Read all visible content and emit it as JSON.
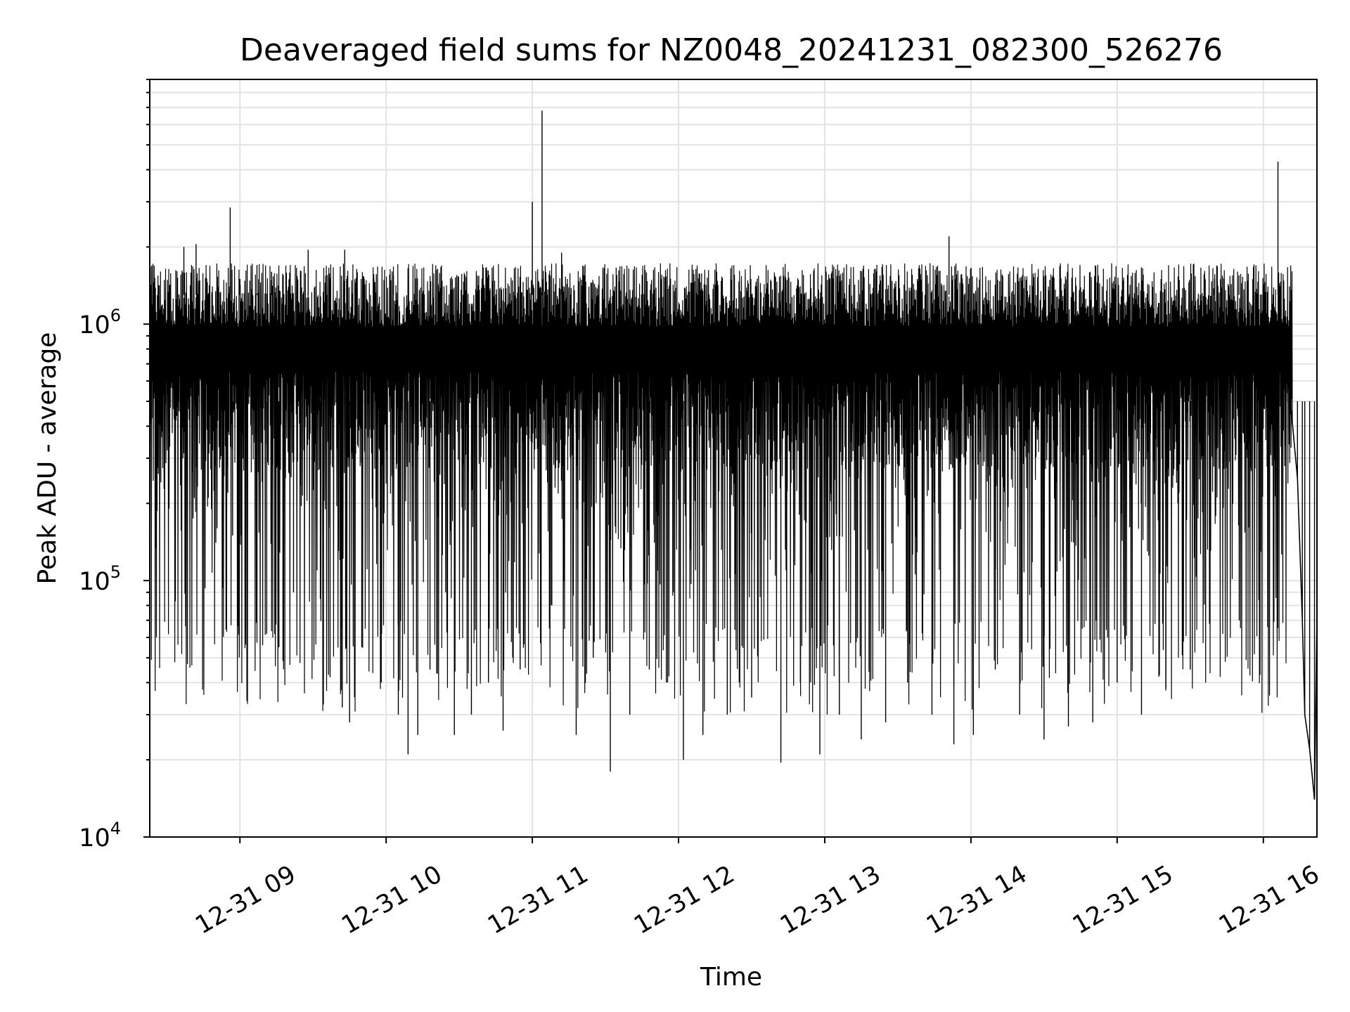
{
  "chart_data": {
    "type": "line",
    "title": "Deaveraged field sums for NZ0048_20241231_082300_526276",
    "xlabel": "Time",
    "ylabel": "Peak ADU - average",
    "yscale": "log",
    "ylim": [
      10000,
      9000000
    ],
    "xlim": [
      "2024-12-31 08:23",
      "2024-12-31 16:22"
    ],
    "xticks": [
      {
        "value": "2024-12-31 09:00",
        "label": "12-31 09"
      },
      {
        "value": "2024-12-31 10:00",
        "label": "12-31 10"
      },
      {
        "value": "2024-12-31 11:00",
        "label": "12-31 11"
      },
      {
        "value": "2024-12-31 12:00",
        "label": "12-31 12"
      },
      {
        "value": "2024-12-31 13:00",
        "label": "12-31 13"
      },
      {
        "value": "2024-12-31 14:00",
        "label": "12-31 14"
      },
      {
        "value": "2024-12-31 15:00",
        "label": "12-31 15"
      },
      {
        "value": "2024-12-31 16:00",
        "label": "12-31 16"
      }
    ],
    "yticks": [
      {
        "value": 10000,
        "base": "10",
        "exp": "4"
      },
      {
        "value": 100000,
        "base": "10",
        "exp": "5"
      },
      {
        "value": 1000000,
        "base": "10",
        "exp": "6"
      }
    ],
    "grid": true,
    "line_color": "#000000",
    "series": [
      {
        "points": [
          [
            "2024-12-31 08:23",
            450000
          ],
          [
            "2024-12-31 08:27",
            600000
          ],
          [
            "2024-12-31 08:31",
            1100000
          ],
          [
            "2024-12-31 08:33",
            500000
          ],
          [
            "2024-12-31 08:35",
            1300000
          ],
          [
            "2024-12-31 08:37",
            2000000
          ],
          [
            "2024-12-31 08:39",
            700000
          ],
          [
            "2024-12-31 08:42",
            2050000
          ],
          [
            "2024-12-31 08:45",
            350000
          ],
          [
            "2024-12-31 08:47",
            210000
          ],
          [
            "2024-12-31 08:51",
            1400000
          ],
          [
            "2024-12-31 08:55",
            220000
          ],
          [
            "2024-12-31 08:57",
            150000
          ],
          [
            "2024-12-31 09:00",
            1500000
          ],
          [
            "2024-12-31 08:56",
            2850000
          ],
          [
            "2024-12-31 09:03",
            105000
          ],
          [
            "2024-12-31 09:07",
            1700000
          ],
          [
            "2024-12-31 09:11",
            62000
          ],
          [
            "2024-12-31 09:13",
            1600000
          ],
          [
            "2024-12-31 09:16",
            55000
          ],
          [
            "2024-12-31 09:19",
            1550000
          ],
          [
            "2024-12-31 09:22",
            90000
          ],
          [
            "2024-12-31 09:28",
            1950000
          ],
          [
            "2024-12-31 09:33",
            85000
          ],
          [
            "2024-12-31 09:37",
            42000
          ],
          [
            "2024-12-31 09:42",
            32000
          ],
          [
            "2024-12-31 09:43",
            1950000
          ],
          [
            "2024-12-31 09:45",
            28000
          ],
          [
            "2024-12-31 09:50",
            55000
          ],
          [
            "2024-12-31 09:55",
            1500000
          ],
          [
            "2024-12-31 09:58",
            40000
          ],
          [
            "2024-12-31 10:03",
            1550000
          ],
          [
            "2024-12-31 10:05",
            30000
          ],
          [
            "2024-12-31 10:09",
            21000
          ],
          [
            "2024-12-31 10:13",
            25000
          ],
          [
            "2024-12-31 10:18",
            45000
          ],
          [
            "2024-12-31 10:23",
            1400000
          ],
          [
            "2024-12-31 10:28",
            25000
          ],
          [
            "2024-12-31 10:35",
            30000
          ],
          [
            "2024-12-31 10:42",
            40000
          ],
          [
            "2024-12-31 10:48",
            26000
          ],
          [
            "2024-12-31 10:55",
            45000
          ],
          [
            "2024-12-31 11:00",
            3000000
          ],
          [
            "2024-12-31 11:04",
            6800000
          ],
          [
            "2024-12-31 11:08",
            80000
          ],
          [
            "2024-12-31 11:12",
            1900000
          ],
          [
            "2024-12-31 11:18",
            25000
          ],
          [
            "2024-12-31 11:25",
            50000
          ],
          [
            "2024-12-31 11:32",
            18000
          ],
          [
            "2024-12-31 11:40",
            30000
          ],
          [
            "2024-12-31 11:48",
            45000
          ],
          [
            "2024-12-31 11:55",
            40000
          ],
          [
            "2024-12-31 12:02",
            20000
          ],
          [
            "2024-12-31 12:10",
            25000
          ],
          [
            "2024-12-31 12:20",
            30000
          ],
          [
            "2024-12-31 12:30",
            35000
          ],
          [
            "2024-12-31 12:42",
            19500
          ],
          [
            "2024-12-31 12:50",
            40000
          ],
          [
            "2024-12-31 12:58",
            21000
          ],
          [
            "2024-12-31 13:06",
            30000
          ],
          [
            "2024-12-31 13:15",
            24000
          ],
          [
            "2024-12-31 13:25",
            28000
          ],
          [
            "2024-12-31 13:34",
            40000
          ],
          [
            "2024-12-31 13:44",
            30000
          ],
          [
            "2024-12-31 13:51",
            2200000
          ],
          [
            "2024-12-31 13:53",
            23000
          ],
          [
            "2024-12-31 14:01",
            25000
          ],
          [
            "2024-12-31 14:10",
            45000
          ],
          [
            "2024-12-31 14:20",
            30000
          ],
          [
            "2024-12-31 14:30",
            24000
          ],
          [
            "2024-12-31 14:40",
            27000
          ],
          [
            "2024-12-31 14:50",
            28000
          ],
          [
            "2024-12-31 15:00",
            40000
          ],
          [
            "2024-12-31 15:10",
            30000
          ],
          [
            "2024-12-31 15:20",
            38000
          ],
          [
            "2024-12-31 15:30",
            45000
          ],
          [
            "2024-12-31 15:40",
            1500000
          ],
          [
            "2024-12-31 15:50",
            1550000
          ],
          [
            "2024-12-31 16:00",
            700000
          ],
          [
            "2024-12-31 16:06",
            4300000
          ],
          [
            "2024-12-31 16:10",
            650000
          ],
          [
            "2024-12-31 16:14",
            250000
          ],
          [
            "2024-12-31 16:16",
            70000
          ],
          [
            "2024-12-31 16:17",
            30000
          ],
          [
            "2024-12-31 16:19",
            22000
          ],
          [
            "2024-12-31 16:21",
            14000
          ],
          [
            "2024-12-31 16:22",
            72000
          ]
        ]
      }
    ]
  }
}
